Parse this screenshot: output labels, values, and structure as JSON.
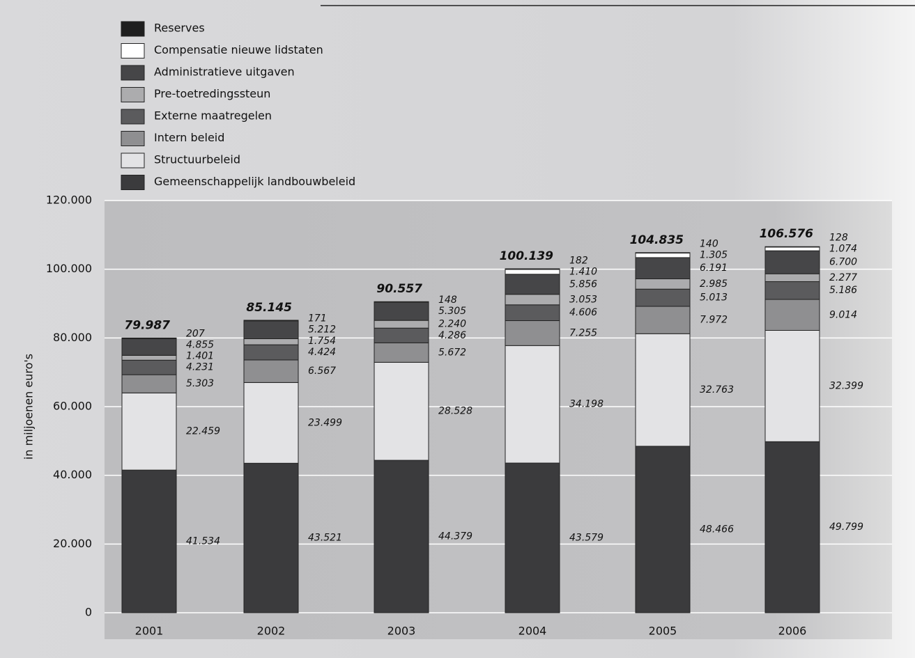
{
  "chart_data": {
    "type": "stacked_bar",
    "y_label": "in miljoenen euro's",
    "categories": [
      "2001",
      "2002",
      "2003",
      "2004",
      "2005",
      "2006"
    ],
    "series": [
      {
        "name": "Gemeenschappelijk landbouwbeleid",
        "color": "#3b3b3d",
        "values": [
          41534,
          43521,
          44379,
          43579,
          48466,
          49799
        ],
        "value_labels": [
          "41.534",
          "43.521",
          "44.379",
          "43.579",
          "48.466",
          "49.799"
        ]
      },
      {
        "name": "Structuurbeleid",
        "color": "#e3e3e5",
        "values": [
          22459,
          23499,
          28528,
          34198,
          32763,
          32399
        ],
        "value_labels": [
          "22.459",
          "23.499",
          "28.528",
          "34.198",
          "32.763",
          "32.399"
        ]
      },
      {
        "name": "Intern beleid",
        "color": "#8f8f91",
        "values": [
          5303,
          6567,
          5672,
          7255,
          7972,
          9014
        ],
        "value_labels": [
          "5.303",
          "6.567",
          "5.672",
          "7.255",
          "7.972",
          "9.014"
        ]
      },
      {
        "name": "Externe maatregelen",
        "color": "#5b5b5d",
        "values": [
          4231,
          4424,
          4286,
          4606,
          5013,
          5186
        ],
        "value_labels": [
          "4.231",
          "4.424",
          "4.286",
          "4.606",
          "5.013",
          "5.186"
        ]
      },
      {
        "name": "Pre-toetredingssteun",
        "color": "#acacae",
        "values": [
          1401,
          1754,
          2240,
          3053,
          2985,
          2277
        ],
        "value_labels": [
          "1.401",
          "1.754",
          "2.240",
          "3.053",
          "2.985",
          "2.277"
        ]
      },
      {
        "name": "Administratieve uitgaven",
        "color": "#464648",
        "values": [
          4855,
          5212,
          5305,
          5856,
          6191,
          6700
        ],
        "value_labels": [
          "4.855",
          "5.212",
          "5.305",
          "5.856",
          "6.191",
          "6.700"
        ]
      },
      {
        "name": "Compensatie nieuwe lidstaten",
        "color": "#ffffff",
        "values": [
          null,
          null,
          null,
          1410,
          1305,
          1074
        ],
        "value_labels": [
          null,
          null,
          null,
          "1.410",
          "1.305",
          "1.074"
        ]
      },
      {
        "name": "Reserves",
        "color": "#1f1f1f",
        "values": [
          207,
          171,
          148,
          182,
          140,
          128
        ],
        "value_labels": [
          "207",
          "171",
          "148",
          "182",
          "140",
          "128"
        ]
      }
    ],
    "totals": {
      "values": [
        79987,
        85145,
        90557,
        100139,
        104835,
        106576
      ],
      "value_labels": [
        "79.987",
        "85.145",
        "90.557",
        "100.139",
        "104.835",
        "106.576"
      ]
    },
    "ylim": [
      0,
      120000
    ],
    "yticks": [
      0,
      {
        "value": 20000,
        "label": "20.000"
      },
      {
        "value": 40000,
        "label": "40.000"
      },
      {
        "value": 60000,
        "label": "60.000"
      },
      {
        "value": 80000,
        "label": "80.000"
      },
      {
        "value": 100000,
        "label": "100.000"
      },
      {
        "value": 120000,
        "label": "120.000"
      }
    ],
    "grid": true,
    "legend": "top-left"
  }
}
